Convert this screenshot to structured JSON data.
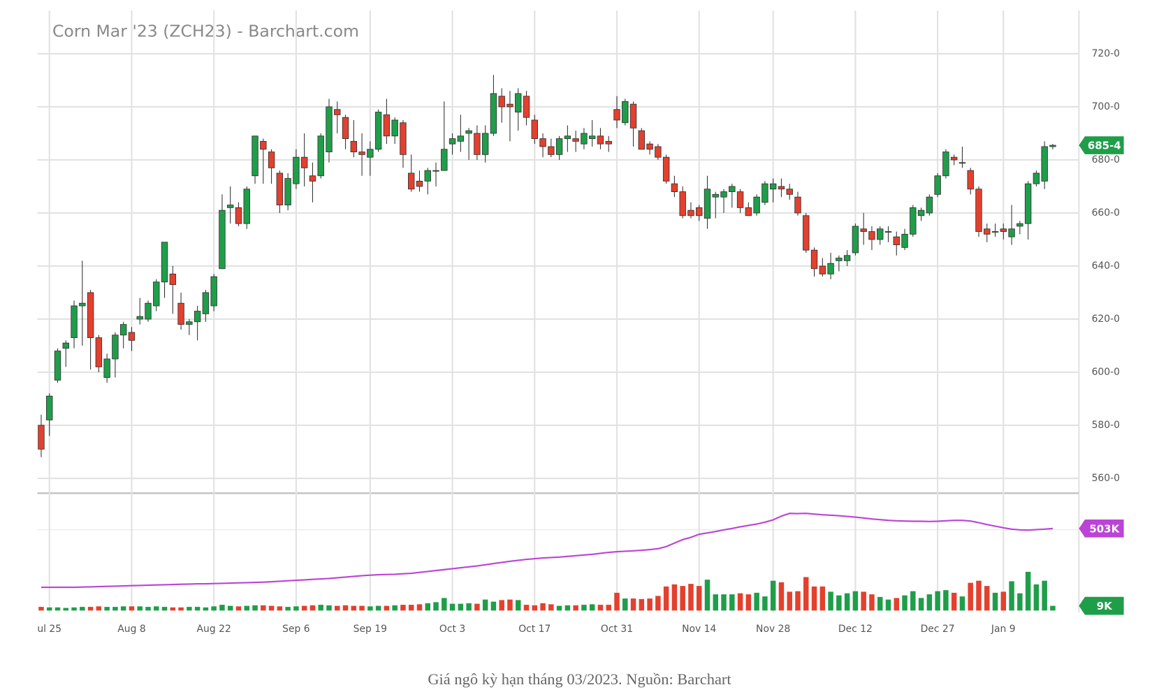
{
  "chart_data": {
    "type": "candlestick",
    "title": "Corn Mar '23 (ZCH23) - Barchart.com",
    "categories": [
      null,
      "ul 25",
      null,
      null,
      null,
      null,
      null,
      null,
      null,
      null,
      null,
      "Aug 8",
      null,
      null,
      null,
      null,
      null,
      null,
      null,
      null,
      null,
      "Aug 22",
      null,
      null,
      null,
      null,
      null,
      null,
      null,
      null,
      null,
      "Sep 6",
      null,
      null,
      null,
      null,
      null,
      null,
      null,
      null,
      "Sep 19",
      null,
      null,
      null,
      null,
      null,
      null,
      null,
      null,
      null,
      "Oct 3",
      null,
      null,
      null,
      null,
      null,
      null,
      null,
      null,
      null,
      "Oct 17",
      null,
      null,
      null,
      null,
      null,
      null,
      null,
      null,
      null,
      "Oct 31",
      null,
      null,
      null,
      null,
      null,
      null,
      null,
      null,
      null,
      "Nov 14",
      null,
      null,
      null,
      null,
      null,
      null,
      null,
      null,
      "Nov 28",
      null,
      null,
      null,
      null,
      null,
      null,
      null,
      null,
      null,
      "Dec 12",
      null,
      null,
      null,
      null,
      null,
      null,
      null,
      null,
      null,
      "Dec 27",
      null,
      null,
      null,
      null,
      null,
      null,
      null,
      "Jan 9",
      null,
      null,
      null,
      null,
      null,
      null
    ],
    "open": [
      580,
      582,
      597,
      609,
      613,
      625,
      630,
      613,
      598,
      605,
      614,
      615,
      620,
      620,
      625,
      634,
      637,
      626,
      618,
      619,
      622,
      625,
      639,
      662,
      662,
      656,
      674,
      687,
      683,
      675,
      663,
      671,
      681,
      674,
      674,
      683,
      699,
      696,
      687,
      683,
      681,
      684,
      697,
      689,
      694,
      675,
      672,
      672,
      676,
      676,
      686,
      687,
      690,
      690,
      682,
      690,
      704,
      701,
      698,
      704,
      695,
      688,
      685,
      682,
      688,
      688,
      686,
      688,
      689,
      687,
      699,
      694,
      701,
      691,
      686,
      685,
      681,
      671,
      668,
      661,
      662,
      658,
      666,
      666,
      668,
      668,
      662,
      660,
      664,
      669,
      670,
      669,
      666,
      659,
      646,
      640,
      637,
      642,
      642,
      645,
      654,
      653,
      650,
      653,
      651,
      647,
      652,
      659,
      660,
      667,
      674,
      681,
      679,
      676,
      669,
      654,
      653,
      654,
      651,
      655,
      656,
      671,
      672,
      685
    ],
    "high": [
      584,
      592,
      609,
      612,
      627,
      642,
      631,
      614,
      607,
      615,
      619,
      617,
      628,
      627,
      635,
      649,
      640,
      630,
      620,
      625,
      631,
      637,
      667,
      670,
      664,
      670,
      689,
      688,
      684,
      676,
      675,
      684,
      690,
      679,
      690,
      703,
      702,
      697,
      695,
      690,
      687,
      699,
      703,
      696,
      695,
      682,
      676,
      677,
      679,
      702,
      690,
      697,
      692,
      693,
      693,
      712,
      707,
      706,
      707,
      706,
      697,
      690,
      688,
      689,
      693,
      691,
      692,
      695,
      692,
      689,
      704,
      703,
      702,
      692,
      687,
      686,
      682,
      674,
      670,
      664,
      663,
      674,
      668,
      669,
      671,
      669,
      664,
      667,
      672,
      673,
      673,
      671,
      668,
      660,
      647,
      643,
      645,
      644,
      646,
      656,
      660,
      655,
      655,
      655,
      653,
      654,
      663,
      662,
      667,
      675,
      684,
      682,
      685,
      677,
      670,
      656,
      656,
      656,
      663,
      657,
      672,
      676,
      687,
      686
    ],
    "low": [
      568,
      576,
      596,
      602,
      609,
      610,
      601,
      600,
      596,
      598,
      609,
      608,
      618,
      619,
      623,
      628,
      622,
      616,
      614,
      612,
      619,
      623,
      639,
      656,
      655,
      654,
      671,
      671,
      671,
      660,
      661,
      669,
      670,
      664,
      673,
      679,
      690,
      684,
      681,
      674,
      674,
      683,
      686,
      686,
      677,
      668,
      668,
      667,
      670,
      676,
      682,
      683,
      680,
      680,
      679,
      689,
      694,
      687,
      691,
      693,
      686,
      681,
      681,
      680,
      683,
      683,
      684,
      685,
      684,
      683,
      692,
      693,
      685,
      684,
      682,
      680,
      671,
      666,
      658,
      658,
      657,
      654,
      658,
      660,
      662,
      660,
      659,
      659,
      663,
      664,
      666,
      665,
      659,
      645,
      636,
      636,
      635,
      638,
      640,
      644,
      648,
      646,
      648,
      649,
      644,
      646,
      651,
      657,
      659,
      666,
      673,
      678,
      677,
      667,
      651,
      649,
      651,
      650,
      648,
      652,
      650,
      670,
      669,
      684
    ],
    "close": [
      571,
      591,
      608,
      611,
      625,
      626,
      613,
      602,
      605,
      614,
      618,
      612,
      621,
      626,
      634,
      649,
      633,
      618,
      619,
      623,
      630,
      636,
      661,
      663,
      656,
      669,
      689,
      684,
      677,
      663,
      673,
      681,
      677,
      672,
      689,
      700,
      697,
      688,
      683,
      682,
      684,
      698,
      689,
      695,
      682,
      669,
      670,
      676,
      676,
      684,
      688,
      689,
      691,
      682,
      690,
      705,
      700,
      700,
      705,
      696,
      688,
      685,
      682,
      688,
      689,
      687,
      690,
      689,
      686,
      686,
      695,
      702,
      692,
      684,
      684,
      681,
      672,
      668,
      659,
      659,
      659,
      669,
      667,
      668,
      670,
      662,
      659,
      666,
      671,
      671,
      669,
      667,
      660,
      646,
      639,
      637,
      641,
      643,
      644,
      655,
      653,
      650,
      654,
      653,
      648,
      652,
      662,
      661,
      666,
      674,
      683,
      680,
      679,
      669,
      653,
      652,
      653,
      653,
      654,
      656,
      671,
      675,
      685,
      685.5
    ],
    "up_color": "#1f9e4a",
    "down_color": "#e4402e",
    "ylim": [
      554.4,
      736.3
    ],
    "yticks": [
      {
        "value": 560,
        "label": "560-0"
      },
      {
        "value": 580,
        "label": "580-0"
      },
      {
        "value": 600,
        "label": "600-0"
      },
      {
        "value": 620,
        "label": "620-0"
      },
      {
        "value": 640,
        "label": "640-0"
      },
      {
        "value": 660,
        "label": "660-0"
      },
      {
        "value": 680,
        "label": "680-0"
      },
      {
        "value": 700,
        "label": "700-0"
      },
      {
        "value": 720,
        "label": "720-0"
      }
    ],
    "grid": true,
    "price_tag": {
      "value": 685.5,
      "label": "685-4"
    },
    "volume": {
      "values": [
        7,
        6,
        6,
        5,
        6,
        7,
        7,
        8,
        7,
        7,
        8,
        8,
        8,
        7,
        8,
        7,
        6,
        6,
        7,
        7,
        6,
        8,
        11,
        9,
        8,
        9,
        10,
        10,
        9,
        8,
        7,
        8,
        9,
        10,
        11,
        10,
        9,
        10,
        9,
        9,
        8,
        9,
        9,
        10,
        11,
        11,
        12,
        14,
        16,
        24,
        13,
        13,
        14,
        13,
        21,
        17,
        20,
        21,
        20,
        11,
        10,
        14,
        12,
        9,
        10,
        10,
        11,
        12,
        11,
        11,
        34,
        23,
        23,
        22,
        23,
        28,
        46,
        50,
        47,
        51,
        47,
        59,
        31,
        31,
        31,
        33,
        31,
        34,
        27,
        57,
        54,
        36,
        37,
        64,
        46,
        46,
        36,
        29,
        33,
        37,
        36,
        31,
        26,
        21,
        24,
        29,
        37,
        24,
        31,
        37,
        39,
        34,
        27,
        53,
        57,
        47,
        34,
        36,
        56,
        33,
        74,
        50,
        57,
        9
      ],
      "ylim": [
        0,
        200
      ],
      "tag": {
        "value": 9,
        "label": "9K"
      }
    },
    "open_interest": {
      "values": [
        250,
        250,
        250,
        250,
        250,
        251,
        252,
        253,
        254,
        255,
        256,
        257,
        258,
        259,
        260,
        261,
        262,
        263,
        264,
        265,
        265,
        266,
        267,
        268,
        269,
        270,
        271,
        272,
        274,
        276,
        278,
        280,
        282,
        284,
        286,
        288,
        291,
        294,
        297,
        300,
        302,
        304,
        305,
        306,
        308,
        310,
        314,
        318,
        322,
        326,
        330,
        334,
        338,
        342,
        347,
        352,
        357,
        362,
        366,
        370,
        373,
        376,
        378,
        380,
        383,
        386,
        389,
        392,
        396,
        400,
        403,
        405,
        407,
        409,
        412,
        416,
        425,
        440,
        455,
        465,
        478,
        484,
        490,
        497,
        503,
        510,
        516,
        522,
        530,
        540,
        556,
        568,
        567,
        568,
        565,
        562,
        560,
        558,
        555,
        552,
        548,
        544,
        541,
        538,
        536,
        535,
        534,
        534,
        533,
        534,
        536,
        538,
        538,
        535,
        528,
        520,
        513,
        506,
        500,
        497,
        496,
        498,
        500,
        503
      ],
      "ylim": [
        150,
        600
      ],
      "color": "#bb44d6",
      "tag": {
        "value": 503,
        "label": "503K"
      }
    }
  },
  "caption": "Giá ngô kỳ hạn tháng 03/2023. Nguồn: Barchart"
}
